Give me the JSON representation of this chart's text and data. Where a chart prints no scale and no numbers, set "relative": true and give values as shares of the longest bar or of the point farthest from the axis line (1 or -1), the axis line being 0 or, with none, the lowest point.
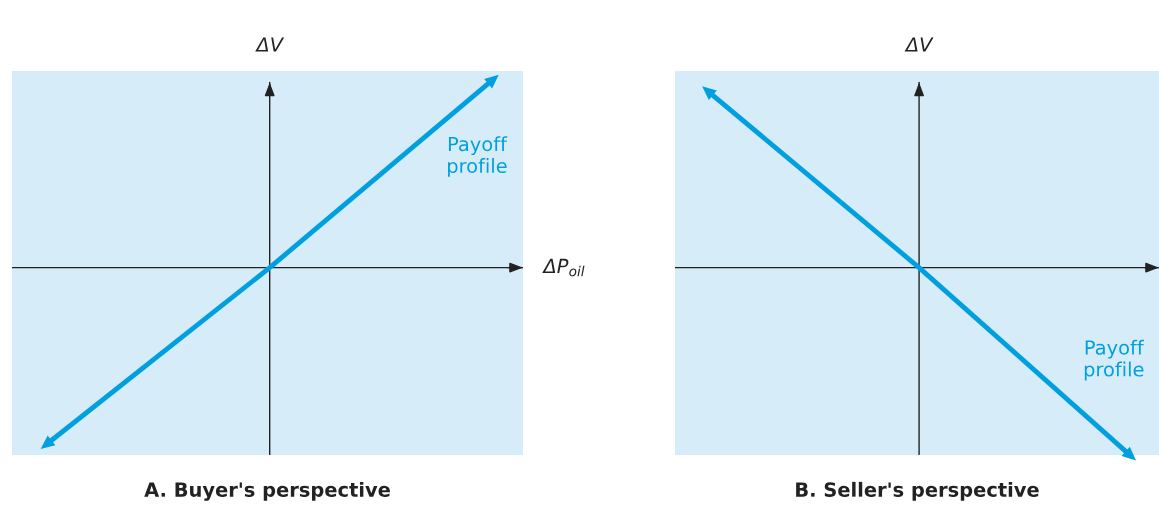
{
  "chart_data": [
    {
      "type": "line",
      "title": "A. Buyer's perspective",
      "xlabel": "ΔP$_{oil}$",
      "ylabel": "ΔV",
      "relative": true,
      "categories": [
        null,
        null,
        null
      ],
      "series": [
        {
          "color": "#00a0e0",
          "values": [
            -0.94,
            0,
            1
          ]
        }
      ],
      "annotations": [
        "Payoff\nprofile"
      ]
    },
    {
      "type": "line",
      "title": "B. Seller's perspective",
      "ylabel": "ΔV",
      "relative": true,
      "categories": [
        null,
        null,
        null
      ],
      "series": [
        {
          "color": "#00a0e0",
          "values": [
            0.94,
            0,
            -1
          ]
        }
      ],
      "annotations": [
        "Payoff\nprofile"
      ]
    }
  ]
}
